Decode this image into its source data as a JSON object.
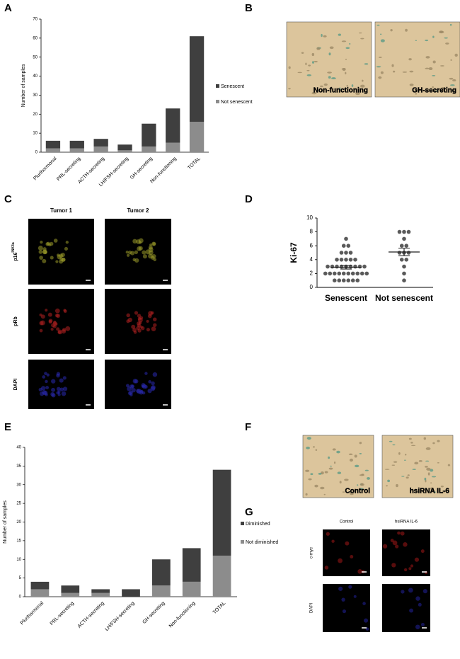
{
  "panel_letters": [
    "A",
    "B",
    "C",
    "D",
    "E",
    "F",
    "G"
  ],
  "panel_b": {
    "images": [
      "Non-functioning",
      "GH-secreting"
    ]
  },
  "panel_c": {
    "columns": [
      "Tumor 1",
      "Tumor 2"
    ],
    "rows": [
      {
        "text": "p16",
        "sup": "INK4a"
      },
      {
        "text": "pRb"
      },
      {
        "text": "DAPI"
      }
    ]
  },
  "panel_f": {
    "images": [
      "Control",
      "hsiRNA IL-6"
    ]
  },
  "panel_g": {
    "columns": [
      "Control",
      "hsiRNA IL-6"
    ],
    "rows": [
      "c-myc",
      "DAPI"
    ]
  },
  "chart_data": [
    {
      "type": "bar",
      "stacked": true,
      "ylabel": "Number of samples",
      "categories": [
        "Plurihormonal",
        "PRL-secreting",
        "ACTH-secreting",
        "LH/FSH-secreting",
        "GH-secreting",
        "Non-functioning",
        "TOTAL"
      ],
      "series": [
        {
          "name": "Senescent",
          "color": "#3f3f3f",
          "values": [
            4,
            4,
            4,
            3,
            12,
            18,
            45
          ]
        },
        {
          "name": "Not senescent",
          "color": "#8c8c8c",
          "values": [
            2,
            2,
            3,
            1,
            3,
            5,
            16
          ]
        }
      ],
      "ylim": [
        0,
        70
      ],
      "yticks": [
        0,
        10,
        20,
        30,
        40,
        50,
        60,
        70
      ]
    },
    {
      "type": "dotplot",
      "ylabel": "Ki-67",
      "color": "#5a5a5a",
      "groups": [
        {
          "name": "Senescent",
          "values": [
            7,
            6,
            6,
            5,
            5,
            5,
            4,
            4,
            4,
            4,
            4,
            3,
            3,
            3,
            3,
            3,
            3,
            3,
            3,
            3,
            2,
            2,
            2,
            2,
            2,
            2,
            2,
            2,
            2,
            2,
            1,
            1,
            1,
            1,
            1,
            1
          ],
          "mean": 2.9,
          "sem": 0.25
        },
        {
          "name": "Not senescent",
          "values": [
            8,
            8,
            8,
            7,
            6,
            6,
            5,
            5,
            5,
            4,
            4,
            3,
            2,
            1
          ],
          "mean": 5.1,
          "sem": 0.55
        }
      ],
      "ylim": [
        0,
        10
      ],
      "yticks": [
        0,
        2,
        4,
        6,
        8,
        10
      ]
    },
    {
      "type": "bar",
      "stacked": true,
      "ylabel": "Number of samples",
      "categories": [
        "Plurihormonal",
        "PRL-secreting",
        "ACTH-secreting",
        "LH/FSH-secreting",
        "GH-secreting",
        "Non-functioning",
        "TOTAL"
      ],
      "series": [
        {
          "name": "Diminished",
          "color": "#3f3f3f",
          "values": [
            2,
            2,
            1,
            2,
            7,
            9,
            23
          ]
        },
        {
          "name": "Not diminished",
          "color": "#8c8c8c",
          "values": [
            2,
            1,
            1,
            0,
            3,
            4,
            11
          ]
        }
      ],
      "ylim": [
        0,
        40
      ],
      "yticks": [
        0,
        5,
        10,
        15,
        20,
        25,
        30,
        35,
        40
      ]
    }
  ]
}
